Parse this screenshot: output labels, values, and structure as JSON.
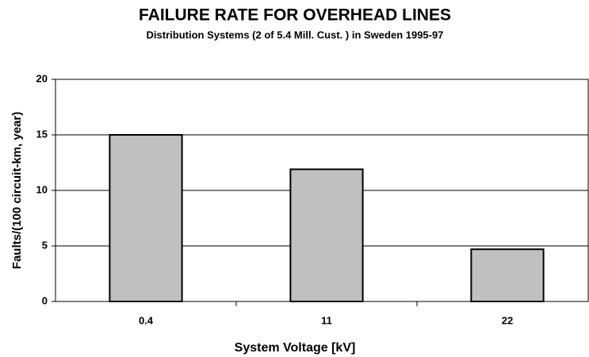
{
  "chart_data": {
    "type": "bar",
    "title": "FAILURE RATE FOR OVERHEAD LINES",
    "subtitle": "Distribution Systems (2 of 5.4 Mill. Cust. ) in Sweden 1995-97",
    "xlabel": "System Voltage [kV]",
    "ylabel": "Faults/(100 circuit-km, year)",
    "categories": [
      "0.4",
      "11",
      "22"
    ],
    "values": [
      15,
      11.9,
      4.7
    ],
    "color": "#c0c0c0",
    "ylim": [
      0,
      20
    ],
    "yticks": [
      0,
      5,
      10,
      15,
      20
    ],
    "grid": true
  }
}
